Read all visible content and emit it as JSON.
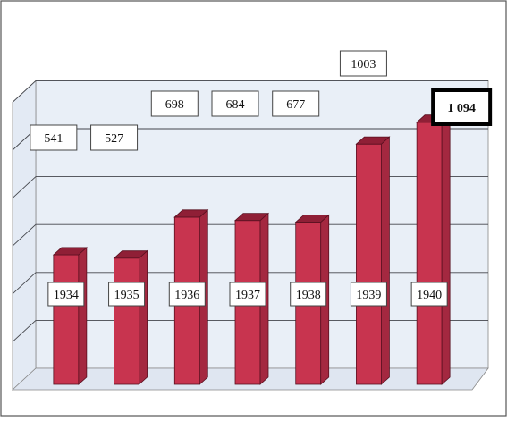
{
  "chart_data": {
    "type": "bar",
    "title": "",
    "xlabel": "",
    "ylabel": "",
    "categories": [
      "1934",
      "1935",
      "1936",
      "1937",
      "1938",
      "1939",
      "1940"
    ],
    "values": [
      541,
      527,
      698,
      684,
      677,
      1003,
      1094
    ],
    "value_labels": [
      "541",
      "527",
      "698",
      "684",
      "677",
      "1003",
      "1 094"
    ],
    "highlighted_category": "1940",
    "ylim": [
      0,
      1200
    ],
    "grid": true,
    "bar_color": "#c8344f",
    "bar_top_color": "#8f1f36",
    "bar_side_color": "#a42840",
    "wall_color": "#e9eff7",
    "floor_color": "#dfe6f1",
    "grid_color": "#44464c"
  }
}
